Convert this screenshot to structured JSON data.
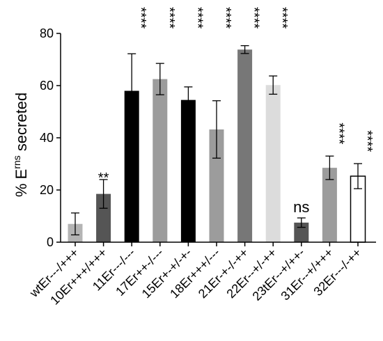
{
  "chart_data": {
    "type": "bar",
    "ylabel": {
      "prefix": "% E",
      "superscript": "rns",
      "suffix": " secreted"
    },
    "ylim": [
      0,
      80
    ],
    "yticks": [
      "0",
      "20",
      "40",
      "60",
      "80"
    ],
    "grid": false,
    "legend": "none",
    "categories": [
      "wtEr---/+++",
      "10Er+++/+++",
      "11Er---/---",
      "17Er++-/---",
      "15Er+-+/-+-",
      "18Er+++/---",
      "21Er-+-/-++",
      "22Er--+/-++",
      "23tEr--+/++-",
      "31Er--+/+++",
      "32Er---/-++"
    ],
    "values": [
      7,
      18.5,
      58,
      62.5,
      54.5,
      43.2,
      73.8,
      60.2,
      7.5,
      28.5,
      25.3
    ],
    "errors": [
      4.2,
      5.5,
      14.2,
      6,
      5,
      11,
      1.5,
      3.5,
      1.8,
      4.5,
      4.8
    ],
    "significance": [
      "",
      "**",
      "****",
      "****",
      "****",
      "****",
      "****",
      "****",
      "ns",
      "****",
      "****"
    ],
    "colors": {
      "black": "#000000",
      "dark": "#555555",
      "medium": "#777777",
      "gray": "#9c9c9c",
      "light": "#dcdcdc",
      "lightgray": "#b4b4b4",
      "white": "#ffffff"
    },
    "bar_colors": [
      "lightgray",
      "dark",
      "black",
      "gray",
      "black",
      "gray",
      "medium",
      "light",
      "dark",
      "gray",
      "white"
    ]
  }
}
